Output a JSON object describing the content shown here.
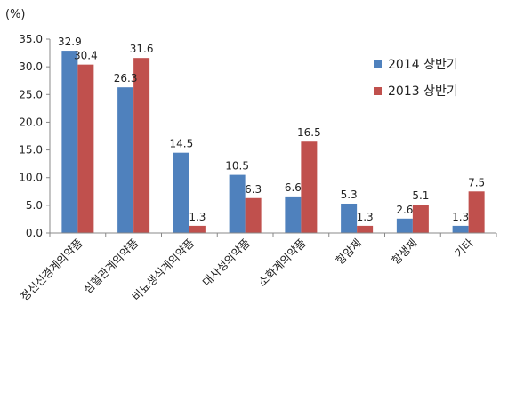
{
  "chart_data": {
    "type": "bar",
    "unit": "(%)",
    "categories": [
      "정신신경계의약품",
      "심혈관계의약품",
      "비뇨생식계의약품",
      "대사성의약품",
      "소화계의약품",
      "항암제",
      "항생제",
      "기타"
    ],
    "series": [
      {
        "name": "2014 상반기",
        "color": "#4F81BD",
        "values": [
          32.9,
          26.3,
          14.5,
          10.5,
          6.6,
          5.3,
          2.6,
          1.3
        ]
      },
      {
        "name": "2013 상반기",
        "color": "#C0504D",
        "values": [
          30.4,
          31.6,
          1.3,
          6.3,
          16.5,
          1.3,
          5.1,
          7.5
        ]
      }
    ],
    "yticks": [
      "0.0",
      "5.0",
      "10.0",
      "15.0",
      "20.0",
      "25.0",
      "30.0",
      "35.0"
    ],
    "ylim": [
      0,
      35
    ],
    "grid": false,
    "legend": "right"
  }
}
